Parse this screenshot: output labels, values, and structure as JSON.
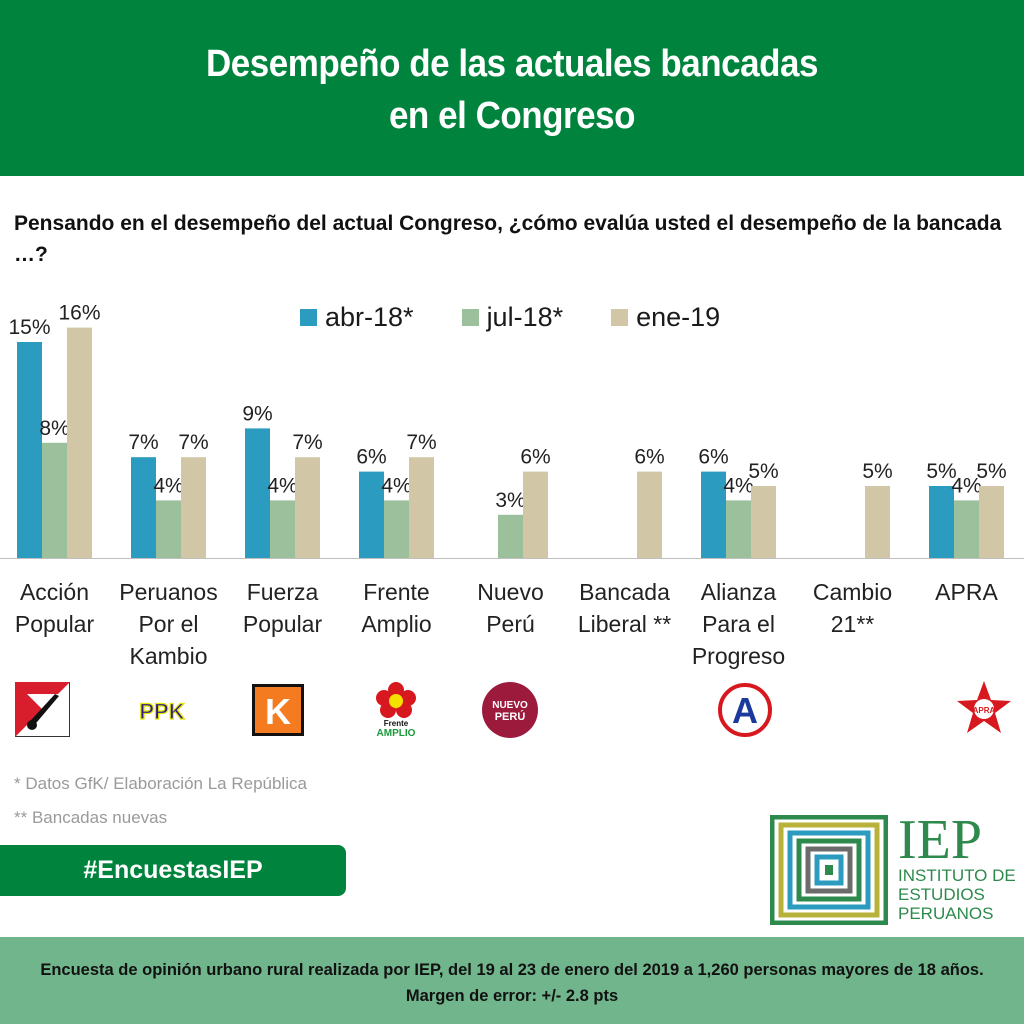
{
  "header": {
    "title_line1": "Desempeño de las actuales bancadas",
    "title_line2": "en el Congreso"
  },
  "question": "Pensando en el desempeño del actual Congreso, ¿cómo evalúa usted el desempeño de la bancada …?",
  "colors": {
    "header_green": "#00843d",
    "abr": "#2b9bbf",
    "jul": "#9cbf9c",
    "ene": "#d1c7a6",
    "footer_green": "#71b58c"
  },
  "chart_data": {
    "type": "bar",
    "categories": [
      "Acción Popular",
      "Peruanos Por el Kambio",
      "Fuerza Popular",
      "Frente Amplio",
      "Nuevo Perú",
      "Bancada Liberal**",
      "Alianza Para el Progreso",
      "Cambio 21**",
      "APRA"
    ],
    "category_labels": [
      "Acción\nPopular",
      "Peruanos\nPor el\nKambio",
      "Fuerza\nPopular",
      "Frente\nAmplio",
      "Nuevo\nPerú",
      "Bancada\nLiberal **",
      "Alianza\nPara el\nProgreso",
      "Cambio\n21**",
      "APRA"
    ],
    "series": [
      {
        "name": "abr-18*",
        "values": [
          15,
          7,
          9,
          6,
          null,
          null,
          6,
          null,
          5
        ]
      },
      {
        "name": "jul-18*",
        "values": [
          8,
          4,
          4,
          4,
          3,
          null,
          4,
          null,
          4
        ]
      },
      {
        "name": "ene-19",
        "values": [
          16,
          7,
          7,
          7,
          6,
          6,
          5,
          5,
          5
        ]
      }
    ],
    "ylim": [
      0,
      16
    ],
    "legend_position": "top",
    "grid": false
  },
  "logos": [
    {
      "name": "accion-popular-logo",
      "text": ""
    },
    {
      "name": "ppk-logo",
      "text": "PPK"
    },
    {
      "name": "fuerza-popular-logo",
      "text": "K"
    },
    {
      "name": "frente-amplio-logo",
      "text": "Frente AMPLIO"
    },
    {
      "name": "nuevo-peru-logo",
      "text": "NUEVO PERÚ"
    },
    {
      "name": "app-logo",
      "text": "A"
    },
    {
      "name": "apra-logo",
      "text": "APRA"
    }
  ],
  "footnotes": {
    "source": "* Datos GfK/ Elaboración La República",
    "new": "** Bancadas nuevas"
  },
  "hashtag": "#EncuestasIEP",
  "iep": {
    "acronym": "IEP",
    "line1": "INSTITUTO DE",
    "line2": "ESTUDIOS",
    "line3": "PERUANOS"
  },
  "footer": "Encuesta de opinión urbano rural realizada por IEP, del 19 al 23 de enero del 2019 a 1,260 personas mayores de 18 años. Margen de error: +/- 2.8 pts"
}
